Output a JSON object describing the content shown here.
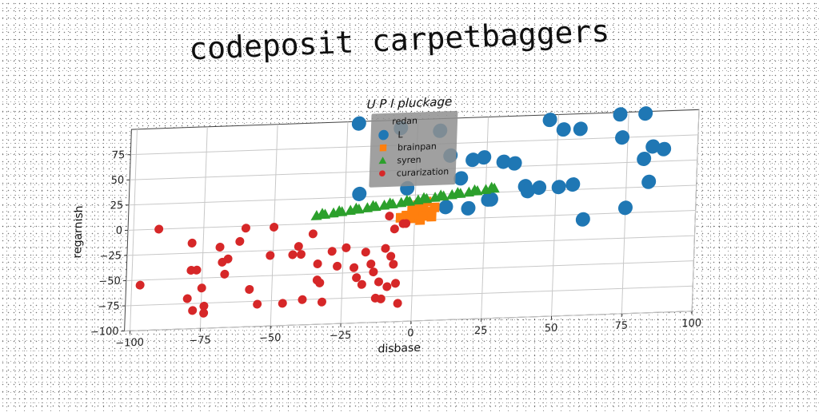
{
  "figure": {
    "title": "codeposit carpetbaggers"
  },
  "chart_data": {
    "type": "scatter",
    "title": "U P I pluckage",
    "xlabel": "disbase",
    "ylabel": "regarnish",
    "xlim": [
      -102,
      100
    ],
    "ylim": [
      -100,
      100
    ],
    "xticks": [
      -100,
      -75,
      -50,
      -25,
      0,
      25,
      50,
      75,
      100
    ],
    "yticks": [
      -100,
      -75,
      -50,
      -25,
      0,
      25,
      50,
      75
    ],
    "xtick_labels": [
      "−100",
      "−75",
      "−50",
      "−25",
      "0",
      "25",
      "50",
      "75",
      "100"
    ],
    "ytick_labels": [
      "−100",
      "−75",
      "−50",
      "−25",
      "0",
      "25",
      "50",
      "75"
    ],
    "grid": true,
    "legend": {
      "title": "redan",
      "placement": "upper-center"
    },
    "series": [
      {
        "name": "L",
        "color": "#1f77b4",
        "marker": "circle-large",
        "points": [
          [
            -21,
            98
          ],
          [
            -6,
            92
          ],
          [
            8,
            88
          ],
          [
            12,
            63
          ],
          [
            20,
            58
          ],
          [
            24,
            60
          ],
          [
            16,
            40
          ],
          [
            -20,
            28
          ],
          [
            -3,
            32
          ],
          [
            11,
            12
          ],
          [
            19,
            10
          ],
          [
            26,
            18
          ],
          [
            31,
            55
          ],
          [
            35,
            53
          ],
          [
            39,
            30
          ],
          [
            47,
            95
          ],
          [
            52,
            85
          ],
          [
            58,
            85
          ],
          [
            72,
            98
          ],
          [
            81,
            98
          ],
          [
            73,
            75
          ],
          [
            84,
            65
          ],
          [
            88,
            62
          ],
          [
            81,
            53
          ],
          [
            83,
            30
          ],
          [
            56,
            30
          ],
          [
            51,
            28
          ],
          [
            44,
            28
          ],
          [
            40,
            25
          ],
          [
            60,
            -5
          ],
          [
            75,
            5
          ],
          [
            27,
            18
          ]
        ]
      },
      {
        "name": "brainpan",
        "color": "#ff7f0e",
        "marker": "square",
        "points": [
          [
            -3,
            5
          ],
          [
            -1,
            10
          ],
          [
            1,
            15
          ],
          [
            3,
            12
          ],
          [
            5,
            8
          ],
          [
            6,
            3
          ],
          [
            2,
            0
          ],
          [
            -1,
            2
          ],
          [
            0,
            6
          ],
          [
            4,
            18
          ],
          [
            -5,
            3
          ],
          [
            7,
            12
          ],
          [
            3,
            4
          ]
        ]
      },
      {
        "name": "syren",
        "color": "#2ca02c",
        "marker": "triangle",
        "points": [
          [
            -35,
            8
          ],
          [
            -32,
            9
          ],
          [
            -29,
            10
          ],
          [
            -26,
            11
          ],
          [
            -23,
            12
          ],
          [
            -20,
            13
          ],
          [
            -17,
            14
          ],
          [
            -14,
            15
          ],
          [
            -11,
            16
          ],
          [
            -8,
            17
          ],
          [
            -5,
            18
          ],
          [
            -2,
            19
          ],
          [
            1,
            20
          ],
          [
            4,
            21
          ],
          [
            7,
            22
          ],
          [
            10,
            23
          ],
          [
            13,
            24
          ],
          [
            16,
            25
          ],
          [
            19,
            26
          ],
          [
            22,
            27
          ],
          [
            25,
            28
          ],
          [
            28,
            29
          ],
          [
            -33,
            10
          ],
          [
            -27,
            12
          ],
          [
            -21,
            14
          ],
          [
            -15,
            16
          ],
          [
            -9,
            18
          ],
          [
            -3,
            20
          ],
          [
            3,
            22
          ],
          [
            9,
            24
          ],
          [
            15,
            26
          ],
          [
            21,
            28
          ],
          [
            27,
            30
          ]
        ]
      },
      {
        "name": "curarization",
        "color": "#d62728",
        "marker": "circle",
        "points": [
          [
            -91,
            0
          ],
          [
            -97,
            -55
          ],
          [
            -79,
            -15
          ],
          [
            -79,
            -42
          ],
          [
            -77,
            -42
          ],
          [
            -75,
            -60
          ],
          [
            -80,
            -70
          ],
          [
            -78,
            -82
          ],
          [
            -74,
            -78
          ],
          [
            -74,
            -85
          ],
          [
            -69,
            -20
          ],
          [
            -68,
            -35
          ],
          [
            -67,
            -47
          ],
          [
            -66,
            -32
          ],
          [
            -62,
            -15
          ],
          [
            -60,
            -2
          ],
          [
            -58,
            -63
          ],
          [
            -55,
            -78
          ],
          [
            -51,
            -30
          ],
          [
            -50,
            -2
          ],
          [
            -46,
            -78
          ],
          [
            -43,
            -30
          ],
          [
            -41,
            -22
          ],
          [
            -40,
            -30
          ],
          [
            -39,
            -75
          ],
          [
            -36,
            -10
          ],
          [
            -34,
            -56
          ],
          [
            -34,
            -40
          ],
          [
            -33,
            -59
          ],
          [
            -32,
            -78
          ],
          [
            -29,
            -28
          ],
          [
            -27,
            -43
          ],
          [
            -24,
            -25
          ],
          [
            -21,
            -45
          ],
          [
            -20,
            -55
          ],
          [
            -18,
            -62
          ],
          [
            -17,
            -30
          ],
          [
            -15,
            -42
          ],
          [
            -14,
            -50
          ],
          [
            -13,
            -76
          ],
          [
            -12,
            -60
          ],
          [
            -11,
            -77
          ],
          [
            -10,
            -27
          ],
          [
            -9,
            -65
          ],
          [
            -8,
            -35
          ],
          [
            -7,
            -43
          ],
          [
            -6,
            -62
          ],
          [
            -5,
            -82
          ],
          [
            -4,
            -3
          ],
          [
            -3,
            -3
          ],
          [
            -9,
            5
          ],
          [
            -7,
            -8
          ]
        ]
      }
    ]
  }
}
